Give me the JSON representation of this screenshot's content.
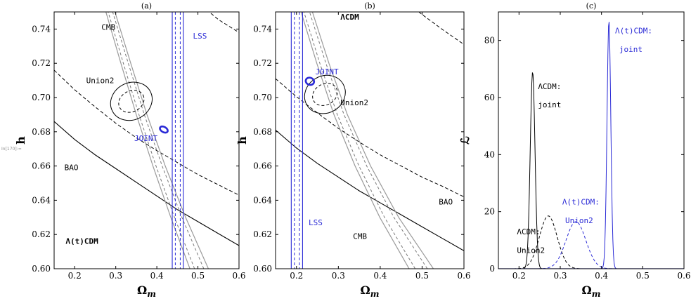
{
  "prompt_label": "In[170]:=",
  "colors": {
    "black": "#000000",
    "blue": "#2a2ad6",
    "gray": "#7a7a7a",
    "lightgray": "#9a9a9a"
  },
  "chart_data": [
    {
      "type": "contour",
      "panel_title": "(a)",
      "xlabel": "Ω",
      "xlabel_sub": "m",
      "ylabel": "h",
      "xlim": [
        0.15,
        0.6
      ],
      "ylim": [
        0.6,
        0.75
      ],
      "xticks": [
        0.2,
        0.3,
        0.4,
        0.5,
        0.6
      ],
      "xtick_labels": [
        "0.2",
        "0.3",
        "0.4",
        "0.5",
        "0.6"
      ],
      "yticks": [
        0.6,
        0.62,
        0.64,
        0.66,
        0.68,
        0.7,
        0.72,
        0.74
      ],
      "ytick_labels": [
        "0.60",
        "0.62",
        "0.64",
        "0.66",
        "0.68",
        "0.70",
        "0.72",
        "0.74"
      ],
      "labels": [
        {
          "key": "cmb",
          "text": "CMB",
          "x": 0.265,
          "y": 0.7395,
          "color": "black"
        },
        {
          "key": "lss",
          "text": "LSS",
          "x": 0.488,
          "y": 0.7345,
          "color": "blue"
        },
        {
          "key": "union2",
          "text": "Union2",
          "x": 0.228,
          "y": 0.7085,
          "color": "black"
        },
        {
          "key": "joint",
          "text": "JOINT",
          "x": 0.345,
          "y": 0.6745,
          "color": "blue"
        },
        {
          "key": "bao",
          "text": "BAO",
          "x": 0.175,
          "y": 0.6575,
          "color": "black"
        },
        {
          "key": "model",
          "text": "Λ(t)CDM",
          "x": 0.178,
          "y": 0.6145,
          "color": "black",
          "bold": true
        }
      ],
      "bao": {
        "x": [
          0.15,
          0.2,
          0.25,
          0.3,
          0.35,
          0.4,
          0.45,
          0.5,
          0.55,
          0.6
        ],
        "h": [
          0.686,
          0.6755,
          0.6665,
          0.6585,
          0.6505,
          0.6425,
          0.6345,
          0.6275,
          0.6205,
          0.6135
        ]
      },
      "bao_dashed": {
        "x": [
          0.15,
          0.2,
          0.25,
          0.3,
          0.35,
          0.4,
          0.45,
          0.5,
          0.55,
          0.6
        ],
        "h": [
          0.716,
          0.7045,
          0.6945,
          0.685,
          0.6765,
          0.669,
          0.662,
          0.655,
          0.649,
          0.643
        ]
      },
      "bao_dashed_upper": {
        "x": [
          0.5,
          0.55,
          0.6
        ],
        "h": [
          0.7555,
          0.7455,
          0.738
        ]
      },
      "cmb": {
        "h": [
          0.6,
          0.63,
          0.66,
          0.69,
          0.72,
          0.75
        ],
        "x_center": [
          0.503,
          0.452,
          0.4055,
          0.363,
          0.3245,
          0.287
        ],
        "width": [
          0.045,
          0.036,
          0.03,
          0.026,
          0.024,
          0.022
        ]
      },
      "lss": {
        "x_center": 0.451,
        "half_width_inner": 0.006,
        "half_width_outer": 0.0135
      },
      "union2_ellipse": {
        "cx": 0.338,
        "cy": 0.6978,
        "rx": 0.052,
        "ry": 0.0045,
        "angle_deg": -28
      },
      "joint_ellipse": {
        "cx": 0.417,
        "cy": 0.6813,
        "rx": 0.0065,
        "ry": 0.0045,
        "angle_deg": -60
      }
    },
    {
      "type": "contour",
      "panel_title": "(b)",
      "xlabel": "Ω",
      "xlabel_sub": "m",
      "ylabel": "h",
      "xlim": [
        0.15,
        0.6
      ],
      "ylim": [
        0.6,
        0.75
      ],
      "xticks": [
        0.2,
        0.3,
        0.4,
        0.5,
        0.6
      ],
      "xtick_labels": [
        "0.2",
        "0.3",
        "0.4",
        "0.5",
        "0.6"
      ],
      "yticks": [
        0.6,
        0.62,
        0.64,
        0.66,
        0.68,
        0.7,
        0.72,
        0.74
      ],
      "ytick_labels": [
        "0.60",
        "0.62",
        "0.64",
        "0.66",
        "0.68",
        "0.70",
        "0.72",
        "0.74"
      ],
      "labels": [
        {
          "key": "model",
          "text": "ΛCDM",
          "x": 0.305,
          "y": 0.7455,
          "color": "black",
          "bold": true
        },
        {
          "key": "joint",
          "text": "JOINT",
          "x": 0.245,
          "y": 0.7135,
          "color": "blue"
        },
        {
          "key": "union2",
          "text": "Union2",
          "x": 0.305,
          "y": 0.6955,
          "color": "black"
        },
        {
          "key": "bao",
          "text": "BAO",
          "x": 0.54,
          "y": 0.6375,
          "color": "black"
        },
        {
          "key": "lss",
          "text": "LSS",
          "x": 0.229,
          "y": 0.6255,
          "color": "blue"
        },
        {
          "key": "cmb",
          "text": "CMB",
          "x": 0.335,
          "y": 0.6175,
          "color": "black"
        }
      ],
      "bao": {
        "x": [
          0.15,
          0.2,
          0.25,
          0.3,
          0.35,
          0.4,
          0.45,
          0.5,
          0.55,
          0.6
        ],
        "h": [
          0.681,
          0.6705,
          0.6615,
          0.6535,
          0.6455,
          0.6385,
          0.6315,
          0.6245,
          0.6175,
          0.6105
        ]
      },
      "bao_dashed": {
        "x": [
          0.15,
          0.2,
          0.25,
          0.3,
          0.35,
          0.4,
          0.45,
          0.5,
          0.55,
          0.6
        ],
        "h": [
          0.711,
          0.7005,
          0.691,
          0.682,
          0.674,
          0.6665,
          0.66,
          0.6535,
          0.648,
          0.642
        ]
      },
      "bao_dashed_upper": {
        "x": [
          0.45,
          0.5,
          0.55,
          0.6
        ],
        "h": [
          0.7585,
          0.7485,
          0.7395,
          0.731
        ]
      },
      "cmb": {
        "h": [
          0.6,
          0.63,
          0.66,
          0.69,
          0.72,
          0.75
        ],
        "x_center": [
          0.498,
          0.4215,
          0.3585,
          0.3055,
          0.263,
          0.2245
        ],
        "width": [
          0.058,
          0.045,
          0.037,
          0.032,
          0.029,
          0.027
        ]
      },
      "lss": {
        "x_center": 0.201,
        "half_width_inner": 0.006,
        "half_width_outer": 0.0135
      },
      "union2_ellipse": {
        "cx": 0.268,
        "cy": 0.7018,
        "rx": 0.05,
        "ry": 0.0045,
        "angle_deg": -30
      },
      "joint_ellipse": {
        "cx": 0.232,
        "cy": 0.7095,
        "rx": 0.0085,
        "ry": 0.0045,
        "angle_deg": -70
      }
    },
    {
      "type": "line",
      "panel_title": "(c)",
      "xlabel": "Ω",
      "xlabel_sub": "m",
      "ylabel": "ℒ",
      "xlim": [
        0.15,
        0.6
      ],
      "ylim": [
        0,
        90
      ],
      "xticks": [
        0.2,
        0.3,
        0.4,
        0.5,
        0.6
      ],
      "xtick_labels": [
        "0.2",
        "0.3",
        "0.4",
        "0.5",
        "0.6"
      ],
      "yticks": [
        0,
        20,
        40,
        60,
        80
      ],
      "ytick_labels": [
        "0",
        "20",
        "40",
        "60",
        "80"
      ],
      "series": [
        {
          "name": "ΛCDM: joint",
          "style": "solid",
          "color": "black",
          "mean": 0.233,
          "sigma": 0.0058,
          "peak": 69
        },
        {
          "name": "ΛCDM: Union2",
          "style": "dashed",
          "color": "black",
          "mean": 0.271,
          "sigma": 0.0215,
          "peak": 18.5
        },
        {
          "name": "Λ(t)CDM: Union2",
          "style": "dashed",
          "color": "blue",
          "mean": 0.338,
          "sigma": 0.024,
          "peak": 16.5
        },
        {
          "name": "Λ(t)CDM: joint",
          "style": "solid",
          "color": "blue",
          "mean": 0.418,
          "sigma": 0.0046,
          "peak": 87
        }
      ],
      "labels": [
        {
          "key": "lcdm_joint_1",
          "text": "ΛCDM:",
          "x": 0.246,
          "y": 63,
          "color": "black"
        },
        {
          "key": "lcdm_joint_2",
          "text": "joint",
          "x": 0.246,
          "y": 56.5,
          "color": "black"
        },
        {
          "key": "ltcdm_joint_1",
          "text": "Λ(t)CDM:",
          "x": 0.433,
          "y": 82.5,
          "color": "blue"
        },
        {
          "key": "ltcdm_joint_2",
          "text": "joint",
          "x": 0.443,
          "y": 76,
          "color": "blue"
        },
        {
          "key": "ltcdm_union2_1",
          "text": "Λ(t)CDM:",
          "x": 0.305,
          "y": 22.5,
          "color": "blue"
        },
        {
          "key": "ltcdm_union2_2",
          "text": "Union2",
          "x": 0.312,
          "y": 16,
          "color": "blue"
        },
        {
          "key": "lcdm_union2_1",
          "text": "ΛCDM:",
          "x": 0.195,
          "y": 12,
          "color": "black"
        },
        {
          "key": "lcdm_union2_2",
          "text": "Union2",
          "x": 0.195,
          "y": 5.5,
          "color": "black"
        }
      ]
    }
  ]
}
